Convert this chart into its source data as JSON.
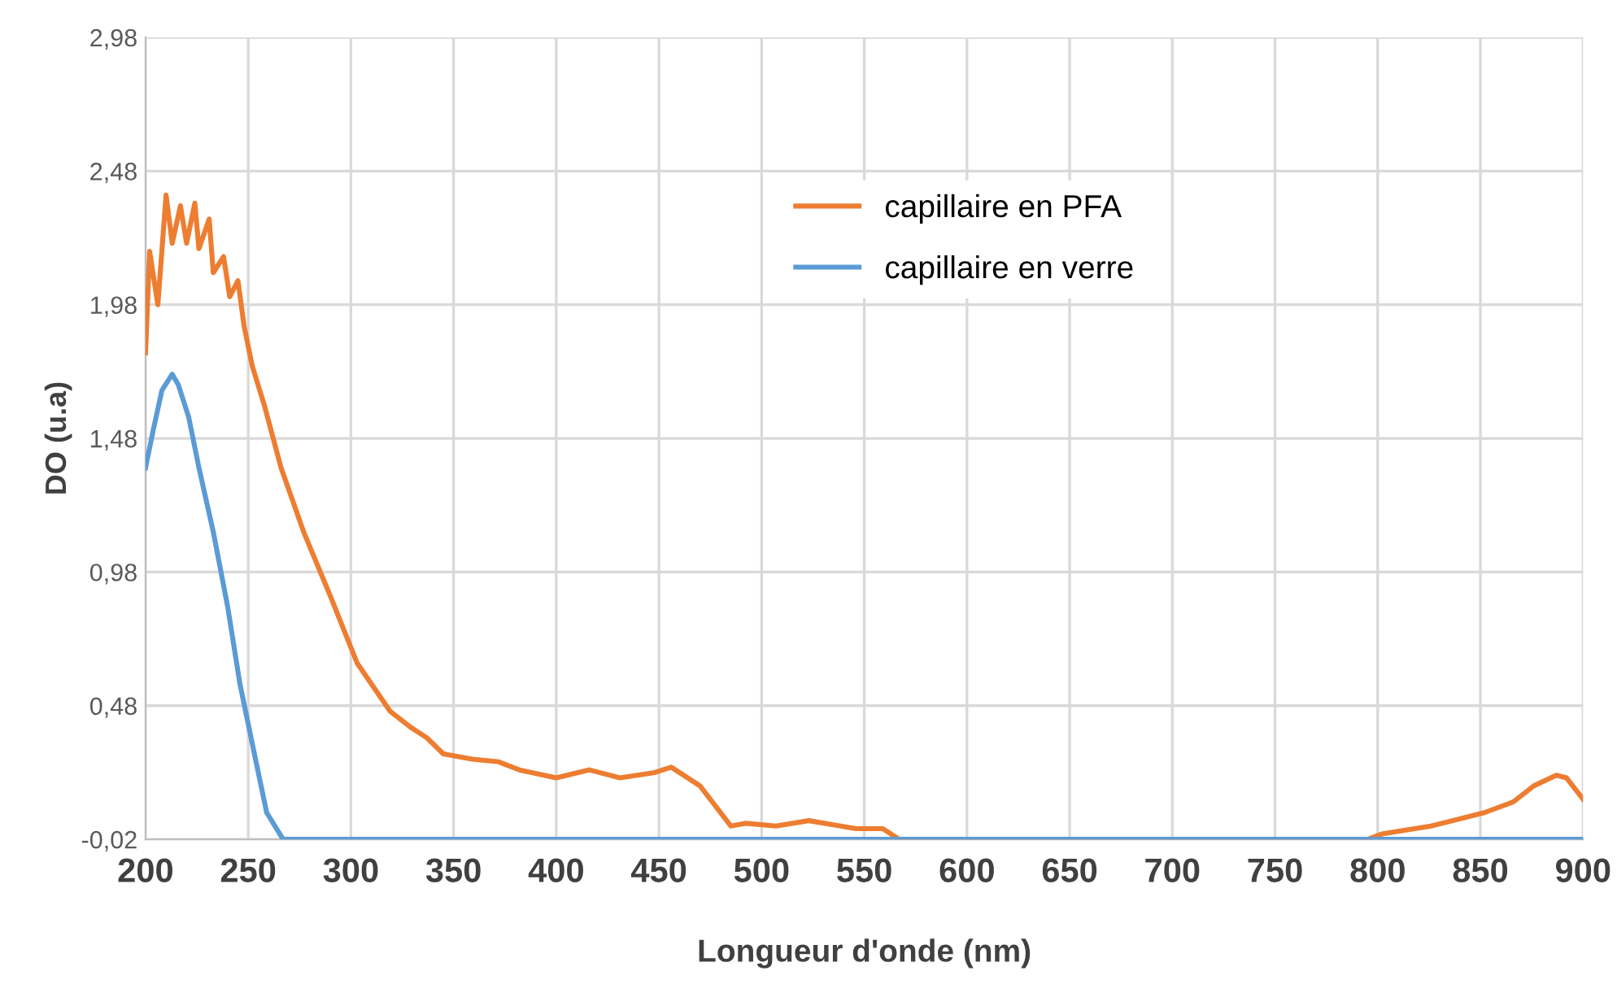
{
  "chart_data": {
    "type": "line",
    "xlabel": "Longueur d'onde (nm)",
    "ylabel": "DO (u.a)",
    "xlim": [
      200,
      900
    ],
    "xticks": [
      200,
      250,
      300,
      350,
      400,
      450,
      500,
      550,
      600,
      650,
      700,
      750,
      800,
      850,
      900
    ],
    "ylim": [
      -0.02,
      2.98
    ],
    "yticks": [
      {
        "value": -0.02,
        "label": "-0,02"
      },
      {
        "value": 0.48,
        "label": "0,48"
      },
      {
        "value": 0.98,
        "label": "0,98"
      },
      {
        "value": 1.48,
        "label": "1,48"
      },
      {
        "value": 1.98,
        "label": "1,98"
      },
      {
        "value": 2.48,
        "label": "2,48"
      },
      {
        "value": 2.98,
        "label": "2,98"
      }
    ],
    "grid": true,
    "legend": "top",
    "marker": "none",
    "line_style": "solid",
    "series": [
      {
        "name": "capillaire en PFA",
        "color": "#ed7d31",
        "x": [
          200,
          202,
          206,
          210,
          213,
          217,
          220,
          224,
          226,
          231,
          233,
          238,
          241,
          245,
          248,
          252,
          258,
          266,
          277,
          290,
          303,
          319,
          329,
          337,
          345,
          359,
          372,
          382,
          400,
          416,
          431,
          448,
          456,
          470,
          477,
          485,
          492,
          507,
          523,
          546,
          559,
          567,
          795,
          802,
          826,
          852,
          866,
          876,
          887,
          892,
          900
        ],
        "values": [
          1.8,
          2.18,
          1.98,
          2.39,
          2.21,
          2.35,
          2.21,
          2.36,
          2.19,
          2.3,
          2.1,
          2.16,
          2.01,
          2.07,
          1.9,
          1.75,
          1.6,
          1.37,
          1.13,
          0.89,
          0.64,
          0.46,
          0.4,
          0.36,
          0.3,
          0.28,
          0.27,
          0.24,
          0.21,
          0.24,
          0.21,
          0.23,
          0.25,
          0.18,
          0.11,
          0.03,
          0.04,
          0.03,
          0.05,
          0.02,
          0.02,
          -0.02,
          -0.02,
          0.0,
          0.03,
          0.08,
          0.12,
          0.18,
          0.22,
          0.21,
          0.13
        ]
      },
      {
        "name": "capillaire en verre",
        "color": "#5b9bd5",
        "x": [
          200,
          204,
          208,
          213,
          216,
          221,
          226,
          233,
          240,
          246,
          253,
          259,
          267,
          300,
          500,
          700,
          900
        ],
        "values": [
          1.37,
          1.52,
          1.66,
          1.72,
          1.68,
          1.56,
          1.37,
          1.13,
          0.85,
          0.56,
          0.3,
          0.08,
          -0.02,
          -0.02,
          -0.02,
          -0.02,
          -0.02
        ]
      }
    ]
  }
}
